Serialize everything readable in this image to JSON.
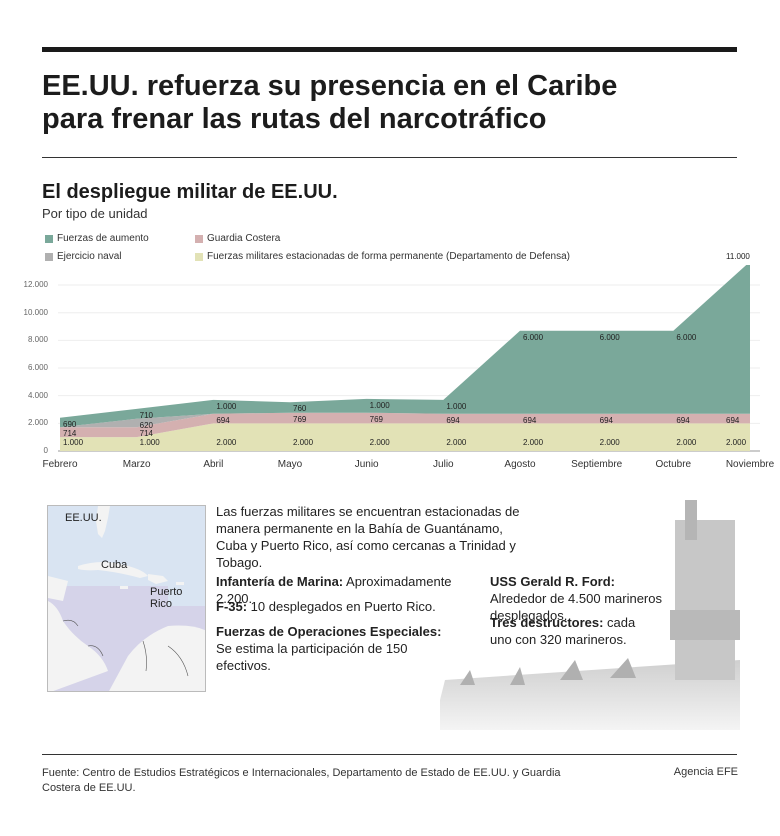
{
  "headline": {
    "line1": "EE.UU. refuerza su presencia en el Caribe",
    "line2": "para frenar las rutas del narcotráfico"
  },
  "chart_section": {
    "title": "El despliegue militar de EE.UU.",
    "subtitle": "Por tipo de unidad"
  },
  "legend": [
    {
      "label": "Fuerzas de aumento",
      "color": "#7aa89a"
    },
    {
      "label": "Guardia Costera",
      "color": "#d4b0b0"
    },
    {
      "label": "Ejercicio naval",
      "color": "#b0b0b0"
    },
    {
      "label": "Fuerzas militares estacionadas de forma permanente (Departamento de Defensa)",
      "color": "#e2e2b6"
    }
  ],
  "chart_data": {
    "type": "area",
    "stacked": true,
    "title": "El despliegue militar de EE.UU.",
    "subtitle": "Por tipo de unidad",
    "xlabel": "",
    "ylabel": "",
    "ylim": [
      0,
      12000
    ],
    "yticks": [
      "0",
      "2.000",
      "4.000",
      "6.000",
      "8.000",
      "10.000",
      "12.000"
    ],
    "grid": true,
    "legend_position": "top",
    "categories": [
      "Febrero",
      "Marzo",
      "Abril",
      "Mayo",
      "Junio",
      "Julio",
      "Agosto",
      "Septiembre",
      "Octubre",
      "Noviembre"
    ],
    "series": [
      {
        "name": "Fuerzas militares estacionadas de forma permanente (Departamento de Defensa)",
        "color": "#e2e2b6",
        "values": [
          1000,
          1000,
          2000,
          2000,
          2000,
          2000,
          2000,
          2000,
          2000,
          2000
        ],
        "labels": [
          "1.000",
          "1.000",
          "2.000",
          "2.000",
          "2.000",
          "2.000",
          "2.000",
          "2.000",
          "2.000",
          "2.000"
        ]
      },
      {
        "name": "Guardia Costera",
        "color": "#d4b0b0",
        "values": [
          714,
          714,
          694,
          769,
          769,
          694,
          694,
          694,
          694,
          694
        ],
        "labels": [
          "714",
          "714",
          "694",
          "769",
          "769",
          "694",
          "694",
          "694",
          "694",
          "694"
        ]
      },
      {
        "name": "Ejercicio naval",
        "color": "#b0b0b0",
        "values": [
          0,
          620,
          0,
          0,
          0,
          0,
          0,
          0,
          0,
          0
        ],
        "labels": [
          "",
          "620",
          "",
          "",
          "",
          "",
          "",
          "",
          "",
          ""
        ]
      },
      {
        "name": "Fuerzas de aumento",
        "color": "#7aa89a",
        "values": [
          690,
          710,
          1000,
          760,
          1000,
          1000,
          6000,
          6000,
          6000,
          11000
        ],
        "labels": [
          "690",
          "710",
          "1.000",
          "760",
          "1.000",
          "1.000",
          "6.000",
          "6.000",
          "6.000",
          "11.000"
        ]
      }
    ]
  },
  "map": {
    "labels": {
      "usa": "EE.UU.",
      "cuba": "Cuba",
      "pr": "Puerto Rico"
    }
  },
  "info": {
    "intro": "Las fuerzas militares se encuentran estacionadas de manera permanente en la Bahía de Guantánamo, Cuba y Puerto Rico, así como cercanas a Trinidad y Tobago.",
    "items_left": [
      {
        "bold": "Infantería de Marina:",
        "text": " Aproximadamente 2.200."
      },
      {
        "bold": "F-35:",
        "text": " 10 desplegados en Puerto Rico."
      },
      {
        "bold": "Fuerzas de Operaciones Especiales:",
        "text": " Se estima la participación de 150 efectivos."
      }
    ],
    "items_right": [
      {
        "bold": "USS Gerald R. Ford:",
        "text": " Alrededor de 4.500 marineros desplegados."
      },
      {
        "bold": "Tres destructores:",
        "text": " cada uno con 320 marineros."
      }
    ]
  },
  "footer": {
    "source": "Fuente: Centro de Estudios Estratégicos e Internacionales, Departamento de Estado de EE.UU. y Guardia Costera de EE.UU.",
    "credit": "Agencia EFE"
  }
}
